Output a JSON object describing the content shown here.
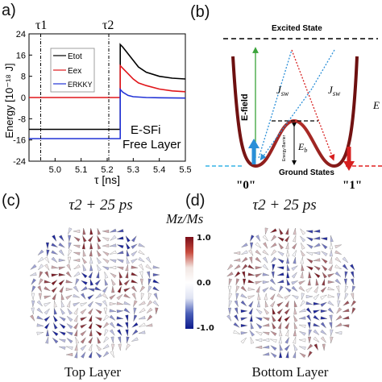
{
  "panel_a": {
    "label": "a)",
    "tau1_label": "τ1",
    "tau2_label": "τ2",
    "ylabel": "Energy [10⁻¹⁸ J]",
    "xlabel": "τ [ns]",
    "annotation_line1": "E-SFi",
    "annotation_line2": "Free Layer",
    "legend": [
      "Etot",
      "Eex",
      "ERKKY"
    ],
    "colors": {
      "tot": "#000000",
      "ex": "#e0161b",
      "rkky": "#2233d6"
    }
  },
  "chart_data": {
    "type": "line",
    "xlabel": "τ [ns]",
    "ylabel": "Energy [10⁻¹⁸ J]",
    "xlim": [
      4.9,
      5.5
    ],
    "ylim": [
      -24,
      24
    ],
    "x_ticks": [
      "5.0",
      "5.1",
      "5.2",
      "5.3",
      "5.4",
      "5.5"
    ],
    "y_ticks": [
      "24",
      "16",
      "8",
      "0",
      "-8",
      "-16",
      "-24"
    ],
    "series": [
      {
        "name": "Etot",
        "x": [
          4.9,
          5.25,
          5.25,
          5.26,
          5.28,
          5.3,
          5.32,
          5.35,
          5.4,
          5.45,
          5.5
        ],
        "values": [
          -12,
          -12,
          20,
          19,
          16.5,
          14,
          11.5,
          9.5,
          8,
          7.3,
          7
        ]
      },
      {
        "name": "Eex",
        "x": [
          4.9,
          5.25,
          5.25,
          5.26,
          5.28,
          5.3,
          5.32,
          5.35,
          5.4,
          5.45,
          5.5
        ],
        "values": [
          0,
          0,
          12,
          11,
          9,
          7,
          5.5,
          4.5,
          3.2,
          2.5,
          2.2
        ]
      },
      {
        "name": "ERKKY",
        "x": [
          4.9,
          5.25,
          5.25,
          5.26,
          5.28,
          5.3,
          5.35,
          5.4,
          5.5
        ],
        "values": [
          -15.5,
          -15.5,
          3,
          2,
          0.8,
          0.3,
          0,
          -0.1,
          -0.2
        ]
      }
    ]
  },
  "panel_b": {
    "label": "(b)",
    "excited_state": "Excited State",
    "efield": "E-field",
    "jsw": "J",
    "jsw_sub": "sw",
    "eb_main": "E",
    "eb_sub": "b",
    "energy_barrier": "Energy Barrier",
    "ground_states": "Ground States",
    "state0": "\"0\"",
    "state1": "\"1\"",
    "right_edge_letter": "E"
  },
  "panel_c": {
    "label": "(c)",
    "title": "τ2 + 25 ps",
    "caption": "Top Layer"
  },
  "panel_d": {
    "label": "(d)",
    "title": "τ2 + 25 ps",
    "caption": "Bottom Layer"
  },
  "colorbar": {
    "title": "Mz/Ms",
    "ticks": [
      "1.0",
      "0.0",
      "-1.0"
    ]
  }
}
